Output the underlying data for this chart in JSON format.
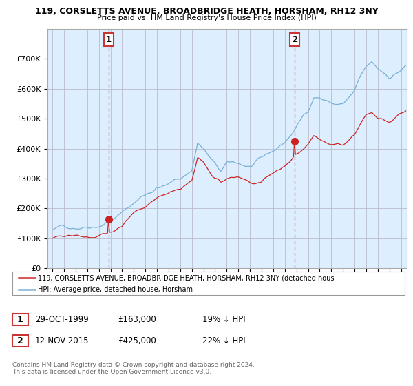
{
  "title1": "119, CORSLETTS AVENUE, BROADBRIDGE HEATH, HORSHAM, RH12 3NY",
  "title2": "Price paid vs. HM Land Registry's House Price Index (HPI)",
  "legend_line1": "119, CORSLETTS AVENUE, BROADBRIDGE HEATH, HORSHAM, RH12 3NY (detached hous",
  "legend_line2": "HPI: Average price, detached house, Horsham",
  "sale1_label": "1",
  "sale1_date": "29-OCT-1999",
  "sale1_price": 163000,
  "sale1_hpi_pct": "19% ↓ HPI",
  "sale2_label": "2",
  "sale2_date": "12-NOV-2015",
  "sale2_price": 425000,
  "sale2_hpi_pct": "22% ↓ HPI",
  "sale1_year": 1999.83,
  "sale2_year": 2015.87,
  "hpi_color": "#7ab0d4",
  "price_color": "#cc2222",
  "vline_color": "#cc3333",
  "chart_bg_color": "#ddeeff",
  "background_color": "#ffffff",
  "grid_color": "#bbbbcc",
  "footnote": "Contains HM Land Registry data © Crown copyright and database right 2024.\nThis data is licensed under the Open Government Licence v3.0.",
  "ylim_min": 0,
  "ylim_max": 800000,
  "yticks": [
    0,
    100000,
    200000,
    300000,
    400000,
    500000,
    600000,
    700000
  ],
  "ytick_labels": [
    "£0",
    "£100K",
    "£200K",
    "£300K",
    "£400K",
    "£500K",
    "£600K",
    "£700K"
  ]
}
